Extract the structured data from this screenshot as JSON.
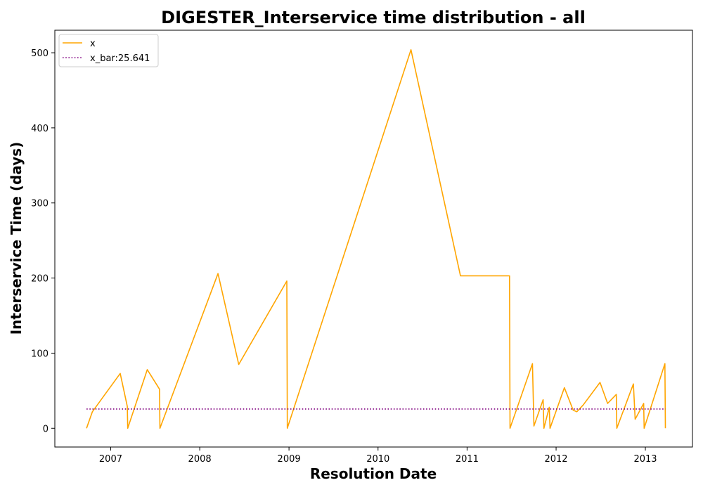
{
  "chart_data": {
    "type": "line",
    "title": "DIGESTER_Interservice time distribution - all",
    "xlabel": "Resolution Date",
    "ylabel": "Interservice Time (days)",
    "xlim": [
      "2006-05-17",
      "2013-07-13"
    ],
    "ylim": [
      -25,
      530
    ],
    "x_ticks": [
      "2007",
      "2008",
      "2009",
      "2010",
      "2011",
      "2012",
      "2013"
    ],
    "y_ticks": [
      0,
      100,
      200,
      300,
      400,
      500
    ],
    "grid": false,
    "legend_placement": "top-left",
    "series": [
      {
        "name": "x",
        "color": "#ffa500",
        "style": "solid",
        "points": [
          {
            "x": "2006-09-24",
            "y": 0
          },
          {
            "x": "2006-10-18",
            "y": 22
          },
          {
            "x": "2007-02-09",
            "y": 73
          },
          {
            "x": "2007-03-10",
            "y": 29
          },
          {
            "x": "2007-03-12",
            "y": 0
          },
          {
            "x": "2007-05-31",
            "y": 78
          },
          {
            "x": "2007-07-20",
            "y": 52
          },
          {
            "x": "2007-07-22",
            "y": 0
          },
          {
            "x": "2008-03-16",
            "y": 206
          },
          {
            "x": "2008-06-09",
            "y": 85
          },
          {
            "x": "2008-12-23",
            "y": 196
          },
          {
            "x": "2008-12-25",
            "y": 0
          },
          {
            "x": "2010-05-16",
            "y": 504
          },
          {
            "x": "2010-12-05",
            "y": 203
          },
          {
            "x": "2011-06-24",
            "y": 203
          },
          {
            "x": "2011-06-26",
            "y": 0
          },
          {
            "x": "2011-09-26",
            "y": 86
          },
          {
            "x": "2011-10-02",
            "y": 3
          },
          {
            "x": "2011-11-09",
            "y": 38
          },
          {
            "x": "2011-11-12",
            "y": 0
          },
          {
            "x": "2011-12-04",
            "y": 28
          },
          {
            "x": "2011-12-07",
            "y": 0
          },
          {
            "x": "2012-02-04",
            "y": 54
          },
          {
            "x": "2012-03-11",
            "y": 24
          },
          {
            "x": "2012-03-26",
            "y": 22
          },
          {
            "x": "2012-04-21",
            "y": 31
          },
          {
            "x": "2012-06-29",
            "y": 61
          },
          {
            "x": "2012-07-30",
            "y": 33
          },
          {
            "x": "2012-09-04",
            "y": 45
          },
          {
            "x": "2012-09-06",
            "y": 0
          },
          {
            "x": "2012-11-13",
            "y": 59
          },
          {
            "x": "2012-11-20",
            "y": 12
          },
          {
            "x": "2012-12-25",
            "y": 33
          },
          {
            "x": "2012-12-27",
            "y": 0
          },
          {
            "x": "2013-03-22",
            "y": 86
          },
          {
            "x": "2013-03-24",
            "y": 0
          }
        ]
      },
      {
        "name": "x_bar:25.641",
        "color": "#800080",
        "style": "dotted",
        "points": [
          {
            "x": "2006-09-24",
            "y": 25.641
          },
          {
            "x": "2013-03-24",
            "y": 25.641
          }
        ]
      }
    ]
  }
}
